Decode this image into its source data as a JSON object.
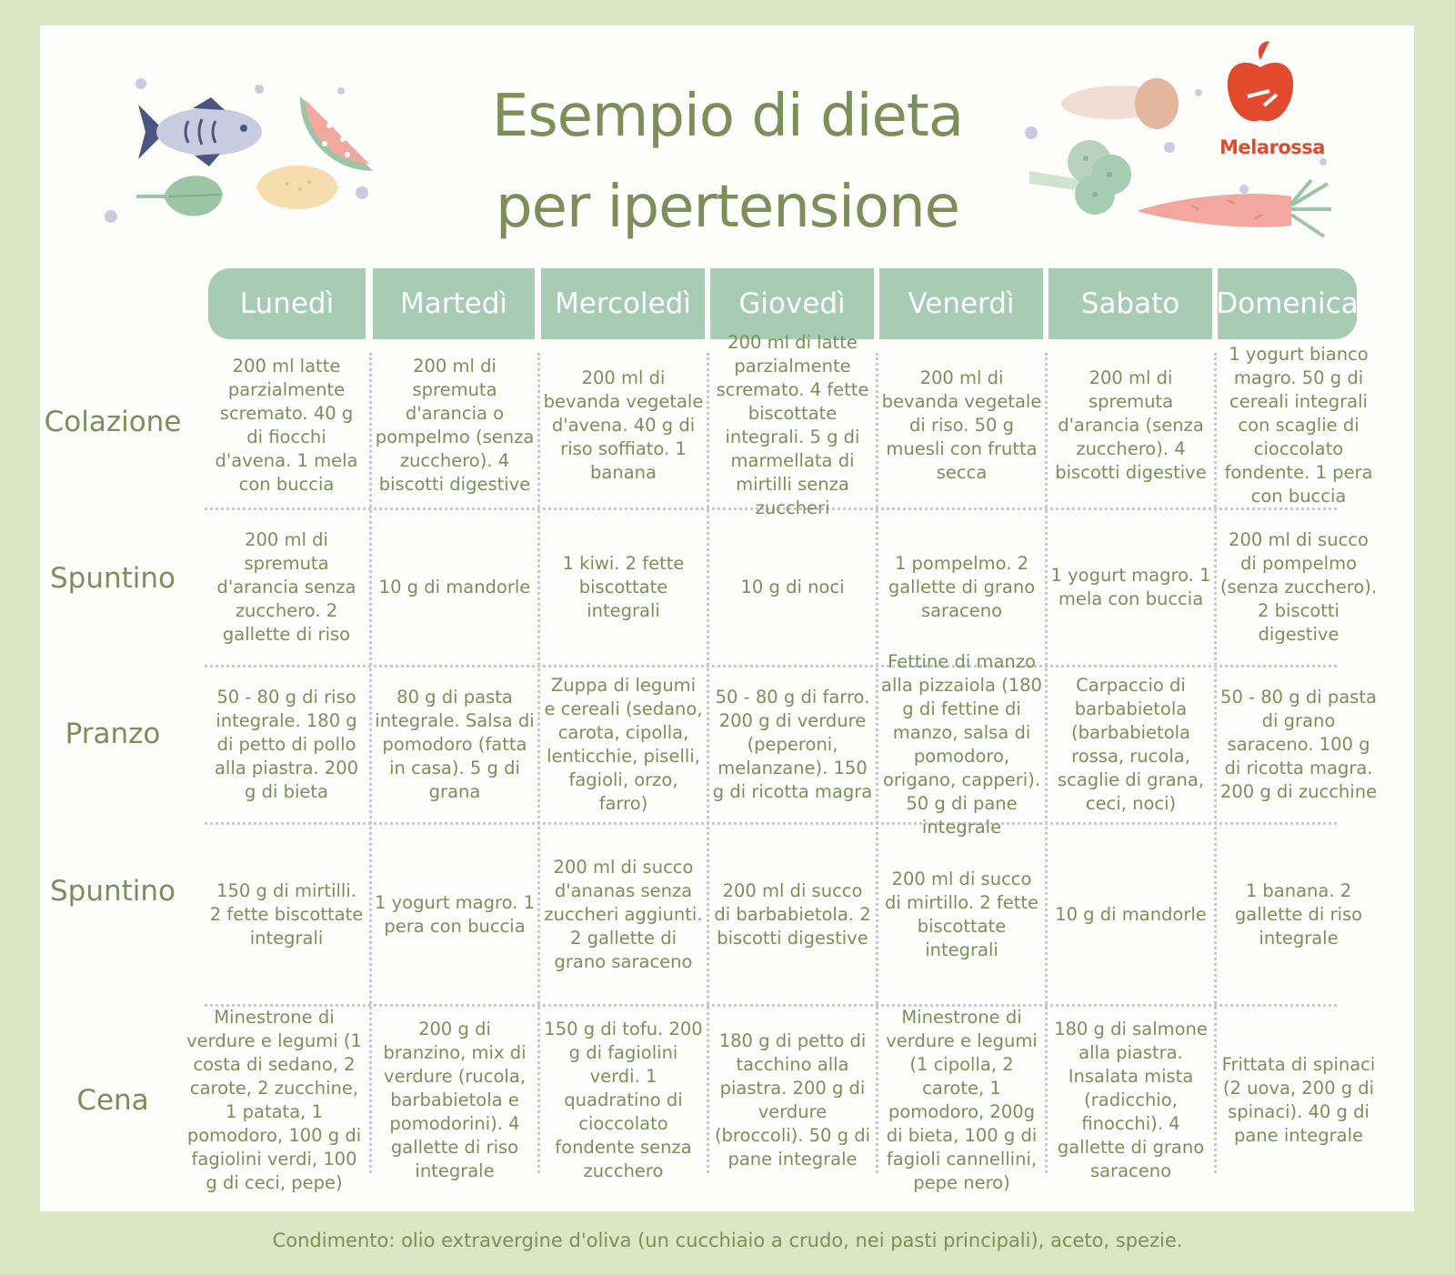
{
  "title": {
    "line1": "Esempio di dieta",
    "line2": "per ipertensione"
  },
  "brand": "Melarossa",
  "days": [
    "Lunedì",
    "Martedì",
    "Mercoledì",
    "Giovedì",
    "Venerdì",
    "Sabato",
    "Domenica"
  ],
  "meals": [
    "Colazione",
    "Spuntino",
    "Pranzo",
    "Spuntino",
    "Cena"
  ],
  "grid": [
    [
      "200 ml latte parzialmente scremato. 40 g di fiocchi d'avena. 1 mela con buccia",
      "200 ml di spremuta d'arancia o pompelmo (senza zucchero). 4 biscotti digestive",
      "200 ml di bevanda vegetale d'avena. 40 g di riso soffiato. 1 banana",
      "200 ml di latte parzialmente scremato. 4 fette biscottate integrali. 5 g di marmellata di mirtilli senza zuccheri",
      "200 ml di bevanda vegetale di riso. 50 g muesli con frutta secca",
      "200 ml di spremuta d'arancia (senza zucchero). 4 biscotti digestive",
      "1 yogurt bianco magro. 50 g di cereali integrali con scaglie di cioccolato fondente. 1 pera con buccia"
    ],
    [
      "200 ml di spremuta d'arancia senza zucchero. 2 gallette di riso",
      "10 g di mandorle",
      "1 kiwi. 2 fette biscottate integrali",
      "10 g di noci",
      "1 pompelmo. 2 gallette di grano saraceno",
      "1 yogurt magro. 1 mela con buccia",
      "200 ml di succo di pompelmo (senza zucchero). 2 biscotti digestive"
    ],
    [
      "50 - 80 g di riso integrale. 180 g di petto di pollo alla piastra. 200 g di bieta",
      "80 g di pasta integrale. Salsa di pomodoro (fatta in casa). 5 g di grana",
      "Zuppa di legumi e cereali (sedano, carota, cipolla, lenticchie, piselli, fagioli, orzo, farro)",
      "50 - 80 g di farro. 200 g di verdure (peperoni, melanzane). 150 g di ricotta magra",
      "Fettine di manzo alla pizzaiola (180 g di fettine di manzo, salsa di pomodoro, origano, capperi). 50 g di pane integrale",
      "Carpaccio di barbabietola (barbabietola rossa, rucola, scaglie di grana, ceci, noci)",
      "50 - 80 g di pasta di grano saraceno. 100 g di ricotta magra. 200 g di zucchine"
    ],
    [
      "150 g di mirtilli. 2 fette biscottate integrali",
      "1 yogurt magro. 1 pera con buccia",
      "200 ml di succo d'ananas senza zuccheri aggiunti. 2 gallette di grano saraceno",
      "200 ml di succo di barbabietola. 2 biscotti digestive",
      "200 ml di succo di mirtillo. 2 fette biscottate integrali",
      "10 g di mandorle",
      "1 banana. 2 gallette di riso integrale"
    ],
    [
      "Minestrone di verdure e legumi (1 costa di sedano, 2 carote, 2 zucchine, 1 patata, 1 pomodoro, 100 g di fagiolini verdi, 100 g di ceci, pepe)",
      "200 g di branzino, mix di verdure (rucola, barbabietola e pomodorini). 4 gallette di riso integrale",
      "150 g di tofu. 200 g di fagiolini verdi. 1 quadratino di cioccolato fondente senza zucchero",
      "180 g di petto di tacchino alla piastra. 200 g di verdure (broccoli). 50 g di pane integrale",
      "Minestrone di verdure e legumi (1 cipolla, 2 carote, 1 pomodoro, 200g di bieta, 100 g di fagioli cannellini, pepe nero)",
      "180 g di salmone alla piastra. Insalata mista (radicchio, finocchi). 4 gallette di grano saraceno",
      "Frittata di spinaci (2 uova, 200 g di spinaci). 40 g di pane integrale"
    ]
  ],
  "footer": "Condimento: olio extravergine d'oliva (un cucchiaio a crudo, nei pasti principali), aceto, spezie.",
  "colors": {
    "accent_green": "#7d8f58",
    "header_teal": "#a8cbb3",
    "background": "#dde5c4",
    "brand_red": "#e24a2e"
  },
  "icons": [
    "fish-icon",
    "watermelon-icon",
    "lemon-icon",
    "leaf-icon",
    "mushroom-icon",
    "apple-logo-icon",
    "broccoli-icon",
    "carrot-icon"
  ]
}
